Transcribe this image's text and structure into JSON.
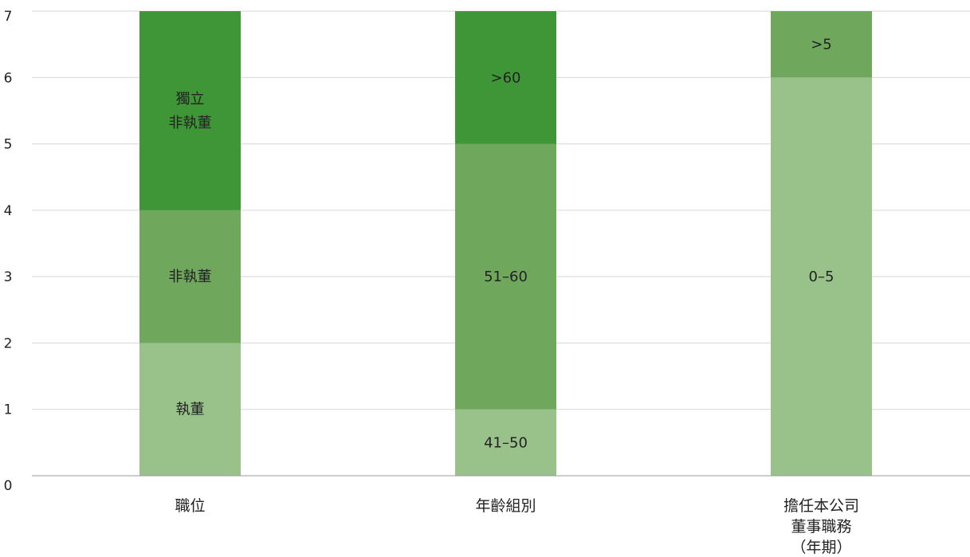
{
  "chart_data": {
    "type": "bar",
    "stacked": true,
    "ylim": [
      0,
      7
    ],
    "yticks": [
      0,
      1,
      2,
      3,
      4,
      5,
      6,
      7
    ],
    "grid": true,
    "categories": [
      {
        "label": [
          "職位"
        ],
        "segments": [
          {
            "label": [
              "執董"
            ],
            "value": 2,
            "color": "#98c28a"
          },
          {
            "label": [
              "非執董"
            ],
            "value": 2,
            "color": "#6fa85d"
          },
          {
            "label": [
              "獨立",
              "非執董"
            ],
            "value": 3,
            "color": "#3e9637"
          }
        ]
      },
      {
        "label": [
          "年齡組別"
        ],
        "segments": [
          {
            "label": [
              "41–50"
            ],
            "value": 1,
            "color": "#98c28a"
          },
          {
            "label": [
              "51–60"
            ],
            "value": 4,
            "color": "#6fa85d"
          },
          {
            "label": [
              ">60"
            ],
            "value": 2,
            "color": "#3e9637"
          }
        ]
      },
      {
        "label": [
          "擔任本公司",
          "董事職務",
          "（年期）"
        ],
        "segments": [
          {
            "label": [
              "0–5"
            ],
            "value": 6,
            "color": "#98c28a"
          },
          {
            "label": [
              ">5"
            ],
            "value": 1,
            "color": "#6fa85d"
          }
        ]
      }
    ],
    "colors": {
      "grid": "#d6d6d6",
      "axis": "#9a9a9a",
      "text": "#222222"
    }
  }
}
